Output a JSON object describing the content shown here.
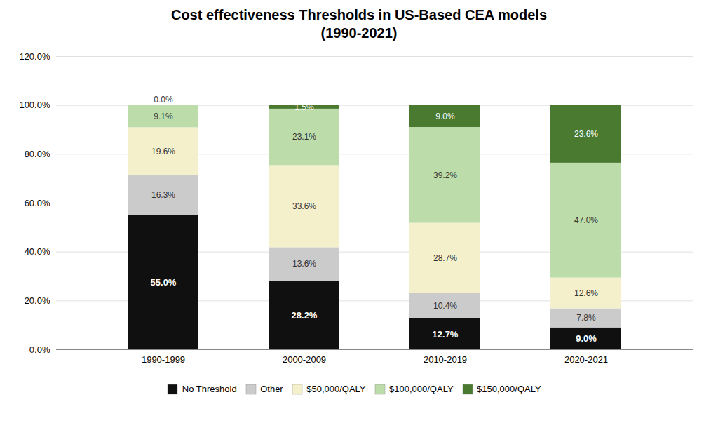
{
  "chart_data": {
    "type": "bar",
    "stacked": true,
    "title": "Cost effectiveness Thresholds in US-Based CEA models",
    "subtitle": "(1990-2021)",
    "categories": [
      "1990-1999",
      "2000-2009",
      "2010-2019",
      "2020-2021"
    ],
    "series": [
      {
        "name": "No Threshold",
        "color": "#101010",
        "values": [
          55.0,
          28.2,
          12.7,
          9.0
        ],
        "value_labels": [
          "55.0%",
          "28.2%",
          "12.7%",
          "9.0%"
        ]
      },
      {
        "name": "Other",
        "color": "#CBCBCB",
        "values": [
          16.3,
          13.6,
          10.4,
          7.8
        ],
        "value_labels": [
          "16.3%",
          "13.6%",
          "10.4%",
          "7.8%"
        ]
      },
      {
        "name": "$50,000/QALY",
        "color": "#F5F0CC",
        "values": [
          19.6,
          33.6,
          28.7,
          12.6
        ],
        "value_labels": [
          "19.6%",
          "33.6%",
          "28.7%",
          "12.6%"
        ]
      },
      {
        "name": "$100,000/QALY",
        "color": "#BCDCAA",
        "values": [
          9.1,
          23.1,
          39.2,
          47.0
        ],
        "value_labels": [
          "9.1%",
          "23.1%",
          "39.2%",
          "47.0%"
        ]
      },
      {
        "name": "$150,000/QALY",
        "color": "#4A7A30",
        "values": [
          0.0,
          1.5,
          9.0,
          23.6
        ],
        "value_labels": [
          "0.0%",
          "1.5%",
          "9.0%",
          "23.6%"
        ]
      }
    ],
    "ylim": [
      0,
      120
    ],
    "yticks": [
      {
        "value": 0,
        "label": "0.0%"
      },
      {
        "value": 20,
        "label": "20.0%"
      },
      {
        "value": 40,
        "label": "40.0%"
      },
      {
        "value": 60,
        "label": "60.0%"
      },
      {
        "value": 80,
        "label": "80.0%"
      },
      {
        "value": 100,
        "label": "100.0%"
      },
      {
        "value": 120,
        "label": "120.0%"
      }
    ],
    "grid": true,
    "legend": "bottom",
    "data_labels": true
  }
}
